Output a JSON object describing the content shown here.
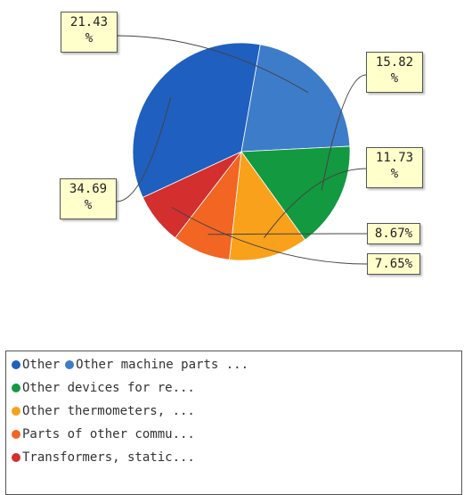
{
  "chart_data": {
    "type": "pie",
    "title": "",
    "slices": [
      {
        "name": "Other machine parts ...",
        "value": 21.43,
        "label_num": "21.43",
        "label_unit": "%",
        "color": "#3d7cc9"
      },
      {
        "name": "Other devices for re...",
        "value": 15.82,
        "label_num": "15.82",
        "label_unit": "%",
        "color": "#13993f"
      },
      {
        "name": "Other thermometers, ...",
        "value": 11.73,
        "label_num": "11.73",
        "label_unit": "%",
        "color": "#f9a11b"
      },
      {
        "name": "Parts of other commu...",
        "value": 8.67,
        "label_num": "8.67%",
        "label_unit": "",
        "color": "#f26522"
      },
      {
        "name": "Transformers, static...",
        "value": 7.65,
        "label_num": "7.65%",
        "label_unit": "",
        "color": "#d32f2f"
      },
      {
        "name": "Other",
        "value": 34.69,
        "label_num": "34.69",
        "label_unit": "%",
        "color": "#1f5fbf"
      }
    ],
    "legend_placement": "bottom"
  },
  "legend": {
    "rows": [
      [
        {
          "label": "Other",
          "color": "#1f5fbf"
        },
        {
          "label": "Other machine parts ...",
          "color": "#3d7cc9"
        }
      ],
      [
        {
          "label": "Other devices for re...",
          "color": "#13993f"
        }
      ],
      [
        {
          "label": "Other thermometers, ...",
          "color": "#f9a11b"
        }
      ],
      [
        {
          "label": "Parts of other commu...",
          "color": "#f26522"
        }
      ],
      [
        {
          "label": "Transformers, static...",
          "color": "#d32f2f"
        }
      ]
    ]
  }
}
